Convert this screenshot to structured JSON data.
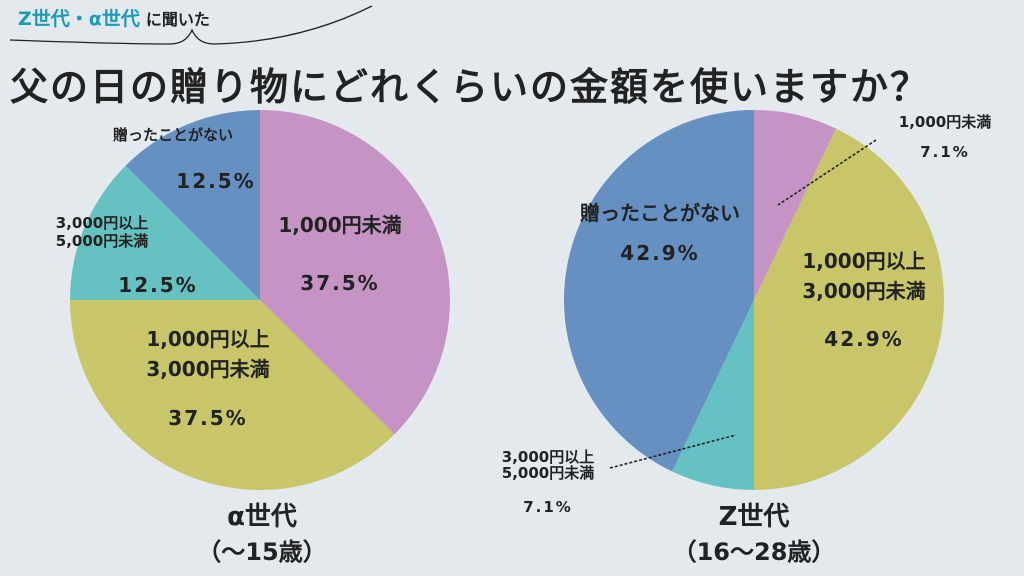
{
  "header": {
    "subtitle_highlight": "Z世代・α世代",
    "subtitle_rest": "に聞いた",
    "title": "父の日の贈り物にどれくらいの金額を使いますか？"
  },
  "colors": {
    "under_1000": "#c593c4",
    "1000_3000": "#c9c66a",
    "3000_5000": "#66c2c2",
    "never": "#6690c2",
    "background": "#e3e9ec",
    "accent": "#1c9ab7"
  },
  "chart_data": [
    {
      "type": "pie",
      "title": "α世代",
      "subtitle": "（〜15歳）",
      "slices": [
        {
          "label": "1,000円未満",
          "value": 37.5,
          "value_label": "37.5%",
          "color": "#c593c4"
        },
        {
          "label": "1,000円以上\n3,000円未満",
          "value": 37.5,
          "value_label": "37.5%",
          "color": "#c9c66a"
        },
        {
          "label": "3,000円以上\n5,000円未満",
          "value": 12.5,
          "value_label": "12.5%",
          "color": "#66c2c2"
        },
        {
          "label": "贈ったことがない",
          "value": 12.5,
          "value_label": "12.5%",
          "color": "#6690c2"
        }
      ]
    },
    {
      "type": "pie",
      "title": "Z世代",
      "subtitle": "（16〜28歳）",
      "slices": [
        {
          "label": "1,000円未満",
          "value": 7.1,
          "value_label": "7.1%",
          "color": "#c593c4"
        },
        {
          "label": "1,000円以上\n3,000円未満",
          "value": 42.9,
          "value_label": "42.9%",
          "color": "#c9c66a"
        },
        {
          "label": "3,000円以上\n5,000円未満",
          "value": 7.1,
          "value_label": "7.1%",
          "color": "#66c2c2"
        },
        {
          "label": "贈ったことがない",
          "value": 42.9,
          "value_label": "42.9%",
          "color": "#6690c2"
        }
      ]
    }
  ]
}
